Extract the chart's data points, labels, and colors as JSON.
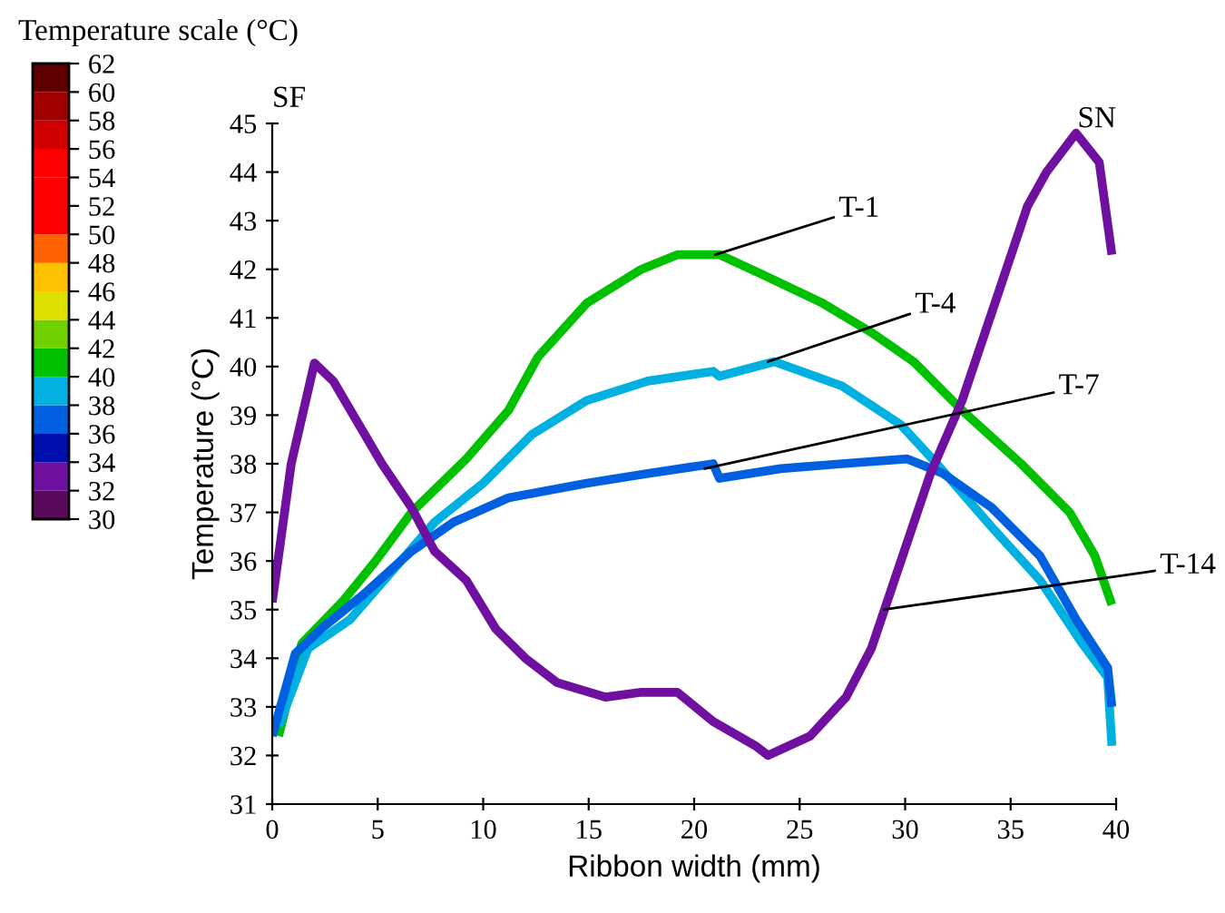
{
  "chart_data": {
    "type": "line",
    "xlabel": "Ribbon width (mm)",
    "ylabel": "Temperature (°C)",
    "clabel": "Temperature scale (°C)",
    "xlim": [
      0,
      40
    ],
    "xticks": [
      0,
      5,
      10,
      15,
      20,
      25,
      30,
      35,
      40
    ],
    "ylim": [
      31,
      45
    ],
    "yticks": [
      31,
      32,
      33,
      34,
      35,
      36,
      37,
      38,
      39,
      40,
      41,
      42,
      43,
      44,
      45
    ],
    "clim": [
      30,
      62
    ],
    "cticks": [
      30,
      32,
      34,
      36,
      38,
      40,
      42,
      44,
      46,
      48,
      50,
      52,
      54,
      56,
      58,
      60,
      62
    ],
    "colors": [
      "#5a0a5a",
      "#7010a0",
      "#0010b0",
      "#0060e0",
      "#00b0e0",
      "#00c000",
      "#70d000",
      "#e0e000",
      "#ffc000",
      "#ff6000",
      "#ff0000",
      "#ff0000",
      "#ff0000",
      "#d00000",
      "#a00000",
      "#600000"
    ],
    "series": [
      {
        "x": [
          0.3,
          1.4,
          3.4,
          4.9,
          6.6,
          9.2,
          11.2,
          12.6,
          14.9,
          17.5,
          19.2,
          20.9,
          21.2,
          23.2,
          26.1,
          28.4,
          30.4,
          32.7,
          35.5,
          37.8,
          39.0,
          39.8
        ],
        "values": [
          32.4,
          34.3,
          35.2,
          36.0,
          37.0,
          38.1,
          39.1,
          40.2,
          41.3,
          42.0,
          42.3,
          42.3,
          42.3,
          41.9,
          41.3,
          40.7,
          40.1,
          39.1,
          38.0,
          37.0,
          36.1,
          35.1
        ],
        "color": "#00c000"
      },
      {
        "x": [
          0.3,
          1.7,
          3.7,
          5.7,
          7.7,
          10,
          12.3,
          14.9,
          17.8,
          20.9,
          21.2,
          23.8,
          27.0,
          29.8,
          31.5,
          34.1,
          36.4,
          38.4,
          39.6,
          39.8
        ],
        "values": [
          32.6,
          34.2,
          34.8,
          35.8,
          36.8,
          37.6,
          38.6,
          39.3,
          39.7,
          39.9,
          39.8,
          40.1,
          39.6,
          38.8,
          38.0,
          36.7,
          35.6,
          34.3,
          33.6,
          32.2
        ],
        "color": "#00b0e0"
      },
      {
        "x": [
          0,
          1.1,
          2.3,
          4.3,
          6.6,
          8.6,
          11.2,
          14.9,
          17.8,
          20.9,
          21.2,
          24.1,
          27.0,
          30.1,
          31.8,
          34.1,
          36.4,
          38.1,
          39.6,
          39.8
        ],
        "values": [
          32.4,
          34.1,
          34.6,
          35.3,
          36.2,
          36.8,
          37.3,
          37.6,
          37.8,
          38.0,
          37.7,
          37.9,
          38.0,
          38.1,
          37.8,
          37.1,
          36.1,
          34.8,
          33.8,
          33.0
        ],
        "color": "#0060e0"
      },
      {
        "x": [
          0,
          0.3,
          0.9,
          2,
          2.9,
          5.2,
          6.6,
          7.7,
          9.2,
          10.6,
          12,
          13.5,
          15.8,
          17.5,
          19.2,
          20.9,
          22.9,
          23.5,
          25.5,
          27.2,
          28.4,
          29.8,
          31.2,
          32.7,
          34.1,
          35.8,
          36.7,
          38.1,
          39.2,
          39.8
        ],
        "values": [
          35.15,
          36.1,
          38,
          40.07,
          39.7,
          38,
          37.1,
          36.2,
          35.6,
          34.6,
          34,
          33.5,
          33.2,
          33.3,
          33.3,
          32.7,
          32.2,
          32.0,
          32.4,
          33.2,
          34.2,
          36.0,
          37.8,
          39.3,
          41.1,
          43.3,
          44.0,
          44.8,
          44.2,
          42.3
        ],
        "color": "#7010a0"
      }
    ],
    "annotations": [
      {
        "text": "T-1",
        "x": 21,
        "y": 42.3
      },
      {
        "text": "T-4",
        "x": 23.5,
        "y": 40.1
      },
      {
        "text": "T-7",
        "x": 20.5,
        "y": 37.9
      },
      {
        "text": "T-14",
        "x": 29,
        "y": 35.0
      },
      "SF",
      "SN"
    ]
  }
}
